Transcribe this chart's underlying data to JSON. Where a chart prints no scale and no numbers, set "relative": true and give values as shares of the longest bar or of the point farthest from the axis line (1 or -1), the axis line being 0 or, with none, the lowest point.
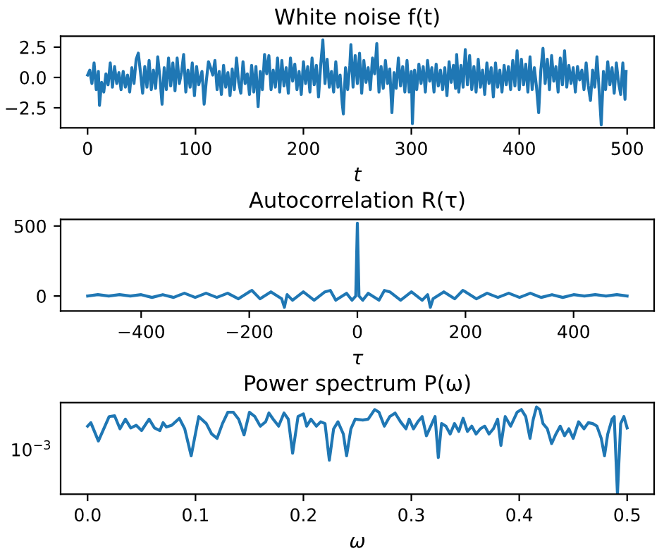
{
  "chart_data": [
    {
      "type": "line",
      "title": "White noise f(t)",
      "xlabel": "t",
      "xlim": [
        -25,
        525
      ],
      "xticks": [
        0,
        100,
        200,
        300,
        400,
        500
      ],
      "ylim": [
        -4.15,
        3.4
      ],
      "yticks": [
        {
          "value": -2.5,
          "label": "−2.5"
        },
        {
          "value": 0,
          "label": "0.0"
        },
        2.5
      ],
      "grid": false,
      "series": [
        {
          "color": "#1f77b4",
          "x": [
            0,
            2,
            4,
            6,
            8,
            10,
            11,
            13,
            15,
            17,
            19,
            21,
            23,
            25,
            27,
            29,
            31,
            33,
            35,
            37,
            39,
            41,
            43,
            45,
            47,
            49,
            51,
            53,
            55,
            57,
            59,
            61,
            63,
            65,
            67,
            69,
            71,
            73,
            75,
            77,
            79,
            81,
            83,
            85,
            87,
            89,
            91,
            93,
            95,
            97,
            99,
            101,
            103,
            106,
            108,
            110,
            112,
            114,
            116,
            118,
            120,
            122,
            124,
            126,
            128,
            130,
            132,
            134,
            136,
            138,
            140,
            142,
            144,
            146,
            148,
            150,
            152,
            154,
            156,
            158,
            160,
            162,
            164,
            166,
            168,
            170,
            172,
            174,
            176,
            178,
            180,
            182,
            184,
            186,
            188,
            190,
            192,
            194,
            196,
            198,
            200,
            202,
            204,
            206,
            208,
            210,
            212,
            214,
            216,
            218,
            220,
            222,
            224,
            226,
            228,
            230,
            232,
            234,
            236,
            237,
            239,
            241,
            243,
            244,
            246,
            248,
            250,
            252,
            254,
            256,
            258,
            260,
            262,
            264,
            266,
            268,
            270,
            272,
            274,
            276,
            278,
            280,
            282,
            284,
            286,
            288,
            290,
            292,
            294,
            296,
            298,
            300,
            301,
            303,
            305,
            307,
            309,
            311,
            313,
            315,
            317,
            319,
            321,
            323,
            325,
            327,
            329,
            331,
            333,
            335,
            337,
            339,
            341,
            342,
            344,
            346,
            348,
            350,
            352,
            354,
            356,
            358,
            360,
            362,
            364,
            366,
            368,
            370,
            372,
            374,
            376,
            378,
            380,
            382,
            384,
            386,
            388,
            390,
            392,
            394,
            396,
            398,
            400,
            402,
            404,
            406,
            408,
            410,
            412,
            414,
            416,
            418,
            420,
            422,
            424,
            426,
            428,
            430,
            432,
            434,
            436,
            438,
            440,
            442,
            444,
            446,
            448,
            450,
            452,
            454,
            456,
            458,
            460,
            462,
            464,
            466,
            468,
            470,
            472,
            474,
            476,
            478,
            480,
            482,
            484,
            486,
            488,
            490,
            492,
            494,
            496,
            498,
            499
          ],
          "values": [
            0.2,
            0.6,
            -0.5,
            1.2,
            -1.0,
            0.5,
            -2.3,
            -0.4,
            -1.2,
            0.3,
            -0.6,
            1.2,
            -0.8,
            0.9,
            -0.5,
            0.4,
            -1.0,
            0.5,
            -0.8,
            0.2,
            -1.2,
            0.8,
            -0.5,
            1.5,
            2.0,
            0.4,
            -1.3,
            0.9,
            -0.8,
            1.4,
            -1.0,
            0.6,
            -0.9,
            1.7,
            0.0,
            -2.2,
            0.8,
            -1.0,
            1.6,
            -0.7,
            1.2,
            -1.1,
            1.6,
            -0.5,
            0.4,
            1.9,
            -1.2,
            0.6,
            -0.8,
            1.2,
            -1.5,
            0.9,
            -0.6,
            0.5,
            -2.2,
            -0.3,
            1.3,
            0.8,
            0.2,
            1.4,
            -1.0,
            0.5,
            -1.4,
            1.0,
            -0.8,
            0.4,
            -1.5,
            0.7,
            -1.0,
            1.6,
            -0.4,
            -1.3,
            1.3,
            -0.5,
            0.3,
            -1.4,
            1.0,
            -1.2,
            0.9,
            -2.4,
            0.5,
            -1.0,
            1.9,
            0.3,
            1.8,
            -1.0,
            0.6,
            -0.8,
            1.6,
            -1.2,
            1.4,
            -0.7,
            0.8,
            -1.3,
            1.6,
            -0.3,
            1.1,
            -1.0,
            0.5,
            -1.4,
            1.3,
            -0.5,
            0.9,
            -1.2,
            1.6,
            -0.6,
            1.0,
            -1.6,
            1.0,
            3.1,
            -0.5,
            1.5,
            -0.8,
            0.5,
            -1.2,
            1.3,
            -0.8,
            0.2,
            -2.2,
            -3.0,
            0.8,
            -1.0,
            1.0,
            2.7,
            -0.8,
            1.8,
            -0.5,
            2.0,
            -1.3,
            1.4,
            -0.4,
            0.8,
            -1.0,
            1.6,
            0.3,
            2.8,
            -1.2,
            0.9,
            -0.9,
            1.4,
            -0.5,
            0.7,
            -2.9,
            0.4,
            -0.9,
            1.6,
            -0.7,
            0.9,
            -1.2,
            1.4,
            -1.2,
            0.5,
            -3.8,
            0.6,
            -1.0,
            1.1,
            -0.5,
            0.9,
            -1.2,
            1.4,
            -0.3,
            0.8,
            -1.2,
            1.1,
            -0.7,
            0.6,
            -1.0,
            0.8,
            -1.5,
            1.3,
            -0.4,
            1.0,
            -0.9,
            1.9,
            -1.2,
            1.0,
            -0.8,
            2.3,
            -0.6,
            1.8,
            -1.0,
            0.9,
            -1.2,
            1.5,
            -0.8,
            0.6,
            -1.4,
            1.2,
            -0.5,
            0.8,
            -1.6,
            1.2,
            -0.8,
            0.6,
            -1.2,
            1.0,
            -0.6,
            0.9,
            -1.0,
            1.4,
            -0.7,
            2.2,
            -1.0,
            1.5,
            -0.6,
            1.1,
            -1.2,
            1.7,
            -1.0,
            0.8,
            -0.8,
            -2.9,
            0.6,
            2.4,
            -0.5,
            1.5,
            -1.0,
            1.8,
            -0.3,
            0.9,
            -1.2,
            1.6,
            -0.6,
            2.2,
            -0.8,
            1.0,
            -0.5,
            0.8,
            -1.2,
            0.9,
            -0.2,
            0.6,
            -1.0,
            1.2,
            -0.7,
            -1.9,
            0.6,
            -0.8,
            1.7,
            -1.0,
            -3.9,
            0.5,
            -1.0,
            1.3,
            -0.6,
            0.8,
            -1.3,
            1.2,
            -0.4,
            -1.4,
            1.2,
            -1.8,
            0.5
          ]
        }
      ]
    },
    {
      "type": "line",
      "title": "Autocorrelation R(τ)",
      "xlabel": "τ",
      "xlim": [
        -549,
        549
      ],
      "xticks": [
        {
          "value": -400,
          "label": "−400"
        },
        {
          "value": -200,
          "label": "−200"
        },
        0,
        200,
        400
      ],
      "ylim": [
        -107,
        547
      ],
      "yticks": [
        0,
        500
      ],
      "grid": false,
      "series": [
        {
          "color": "#1f77b4",
          "x": [
            -499,
            -480,
            -460,
            -440,
            -420,
            -400,
            -380,
            -360,
            -340,
            -320,
            -300,
            -280,
            -260,
            -240,
            -220,
            -200,
            -195,
            -180,
            -160,
            -140,
            -135,
            -130,
            -120,
            -100,
            -80,
            -60,
            -50,
            -40,
            -20,
            -10,
            -3,
            0,
            3,
            10,
            20,
            40,
            50,
            60,
            80,
            100,
            120,
            130,
            135,
            140,
            160,
            180,
            195,
            200,
            220,
            240,
            260,
            280,
            300,
            320,
            340,
            360,
            380,
            400,
            420,
            440,
            460,
            480,
            499
          ],
          "values": [
            0,
            10,
            0,
            10,
            0,
            10,
            -10,
            10,
            -10,
            20,
            -10,
            20,
            -10,
            20,
            -20,
            30,
            40,
            -20,
            30,
            -20,
            -80,
            10,
            -30,
            30,
            -30,
            30,
            40,
            -30,
            20,
            -30,
            0,
            520,
            0,
            -30,
            20,
            -30,
            40,
            30,
            -30,
            30,
            -30,
            10,
            -80,
            -20,
            30,
            -20,
            40,
            30,
            -20,
            20,
            -10,
            20,
            -10,
            20,
            -10,
            10,
            -10,
            10,
            0,
            10,
            0,
            10,
            0
          ]
        }
      ]
    },
    {
      "type": "line",
      "title": "Power spectrum P(ω)",
      "xlabel": "ω",
      "relative": true,
      "annotations": [
        "10$^{−3}$"
      ],
      "xlim": [
        -0.025,
        0.525
      ],
      "xticks": [
        {
          "value": 0.0,
          "label": "0.0"
        },
        0.1,
        0.2,
        0.3,
        0.4,
        0.5
      ],
      "grid": false,
      "series": [
        {
          "color": "#1f77b4",
          "x": [
            0.0,
            0.003,
            0.01,
            0.02,
            0.025,
            0.03,
            0.035,
            0.04,
            0.045,
            0.05,
            0.057,
            0.062,
            0.067,
            0.07,
            0.073,
            0.078,
            0.085,
            0.09,
            0.096,
            0.103,
            0.11,
            0.115,
            0.12,
            0.125,
            0.13,
            0.135,
            0.14,
            0.145,
            0.15,
            0.155,
            0.16,
            0.165,
            0.168,
            0.172,
            0.177,
            0.182,
            0.186,
            0.19,
            0.195,
            0.2,
            0.203,
            0.207,
            0.212,
            0.216,
            0.22,
            0.224,
            0.228,
            0.232,
            0.237,
            0.24,
            0.244,
            0.248,
            0.255,
            0.26,
            0.266,
            0.27,
            0.275,
            0.28,
            0.285,
            0.29,
            0.295,
            0.298,
            0.302,
            0.306,
            0.31,
            0.314,
            0.318,
            0.322,
            0.325,
            0.328,
            0.332,
            0.336,
            0.34,
            0.344,
            0.348,
            0.352,
            0.356,
            0.36,
            0.364,
            0.368,
            0.372,
            0.376,
            0.38,
            0.383,
            0.387,
            0.392,
            0.398,
            0.402,
            0.406,
            0.41,
            0.413,
            0.416,
            0.419,
            0.422,
            0.426,
            0.43,
            0.434,
            0.438,
            0.442,
            0.446,
            0.45,
            0.455,
            0.46,
            0.464,
            0.468,
            0.472,
            0.476,
            0.479,
            0.482,
            0.486,
            0.488,
            0.491,
            0.494,
            0.497,
            0.5
          ],
          "values": [
            0.78,
            0.82,
            0.61,
            0.89,
            0.9,
            0.75,
            0.86,
            0.76,
            0.79,
            0.73,
            0.86,
            0.76,
            0.73,
            0.82,
            0.77,
            0.79,
            0.87,
            0.75,
            0.44,
            0.89,
            0.81,
            0.69,
            0.64,
            0.81,
            0.94,
            0.94,
            0.86,
            0.68,
            0.94,
            0.89,
            0.78,
            0.83,
            0.93,
            0.86,
            0.78,
            0.93,
            0.86,
            0.47,
            0.89,
            0.92,
            0.78,
            0.86,
            0.78,
            0.83,
            0.81,
            0.39,
            0.75,
            0.83,
            0.69,
            0.44,
            0.75,
            0.86,
            0.85,
            0.86,
            0.97,
            0.94,
            0.78,
            0.89,
            0.93,
            0.83,
            0.75,
            0.86,
            0.75,
            0.83,
            0.89,
            0.67,
            0.78,
            0.89,
            0.42,
            0.81,
            0.78,
            0.69,
            0.81,
            0.72,
            0.87,
            0.72,
            0.78,
            0.69,
            0.75,
            0.78,
            0.69,
            0.75,
            0.86,
            0.56,
            0.89,
            0.78,
            0.94,
            0.97,
            0.89,
            0.64,
            0.86,
            1.0,
            0.97,
            0.81,
            0.75,
            0.58,
            0.69,
            0.78,
            0.67,
            0.75,
            0.64,
            0.83,
            0.75,
            0.82,
            0.81,
            0.78,
            0.64,
            0.44,
            0.69,
            0.86,
            0.89,
            0,
            0.81,
            0.89,
            0.76
          ]
        }
      ]
    }
  ]
}
